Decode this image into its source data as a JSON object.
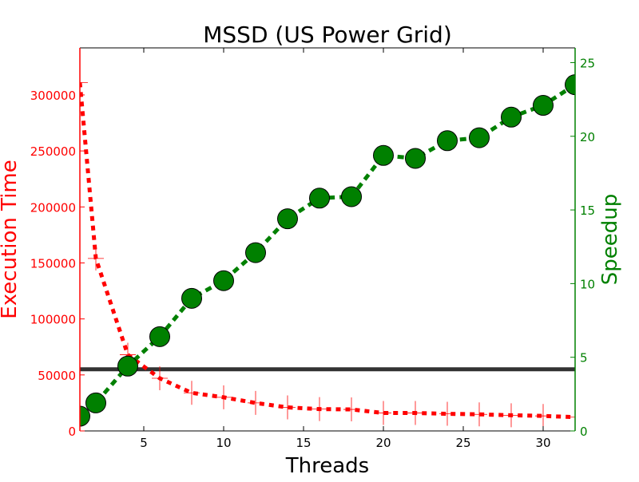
{
  "chart_data": {
    "type": "line",
    "title": "MSSD (US Power Grid)",
    "xlabel": "Threads",
    "ylabel_left": "Execution Time",
    "ylabel_right": "Speedup",
    "xlim": [
      1,
      32
    ],
    "ylim_left": [
      0,
      342000
    ],
    "ylim_right": [
      0,
      26
    ],
    "x_ticks": [
      5,
      10,
      15,
      20,
      25,
      30
    ],
    "y_ticks_left": [
      0,
      50000,
      100000,
      150000,
      200000,
      250000,
      300000
    ],
    "y_ticks_right": [
      0,
      5,
      10,
      15,
      20,
      25
    ],
    "grid": false,
    "colors": {
      "execution_time": "#ff0000",
      "speedup": "#008000",
      "speedup_marker_fill": "#008000",
      "reference_line": "#333333"
    },
    "x": [
      1,
      2,
      4,
      6,
      8,
      10,
      12,
      14,
      16,
      18,
      20,
      22,
      24,
      26,
      28,
      30,
      32
    ],
    "series": [
      {
        "axis": "left",
        "style": "dashed-errorbar",
        "values": [
          311000,
          154000,
          68000,
          47000,
          34000,
          30000,
          25000,
          21000,
          19500,
          19200,
          16000,
          16000,
          15300,
          14800,
          14000,
          13400,
          12300
        ]
      },
      {
        "axis": "right",
        "style": "dashed-circle",
        "values": [
          1.0,
          1.9,
          4.4,
          6.4,
          9.0,
          10.2,
          12.1,
          14.4,
          15.8,
          15.9,
          18.7,
          18.5,
          19.7,
          19.9,
          21.3,
          22.1,
          23.5
        ]
      }
    ],
    "reference_line": {
      "axis": "left",
      "y": 55000
    }
  }
}
